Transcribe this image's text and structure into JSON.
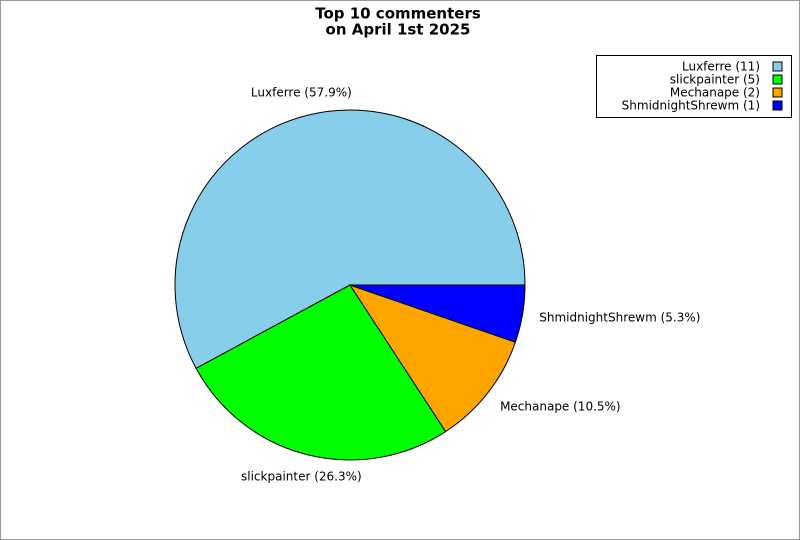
{
  "chart_data": {
    "type": "pie",
    "title": [
      "Top 10 commenters",
      "on April 1st 2025"
    ],
    "categories": [
      "Luxferre",
      "slickpainter",
      "Mechanape",
      "ShmidnightShrewm"
    ],
    "values": [
      57.9,
      26.3,
      10.5,
      5.3
    ],
    "value_labels": [
      "Luxferre (57.9%)",
      "slickpainter (26.3%)",
      "Mechanape (10.5%)",
      "ShmidnightShrewm (5.3%)"
    ],
    "counts": [
      11,
      5,
      2,
      1
    ],
    "count_labels": [
      "Luxferre (11)",
      "slickpainter (5)",
      "Mechanape (2)",
      "ShmidnightShrewm (1)"
    ],
    "colors": [
      "#87ceeb",
      "#00ff00",
      "#ffa500",
      "#0000ff"
    ],
    "legend": "upper right"
  }
}
